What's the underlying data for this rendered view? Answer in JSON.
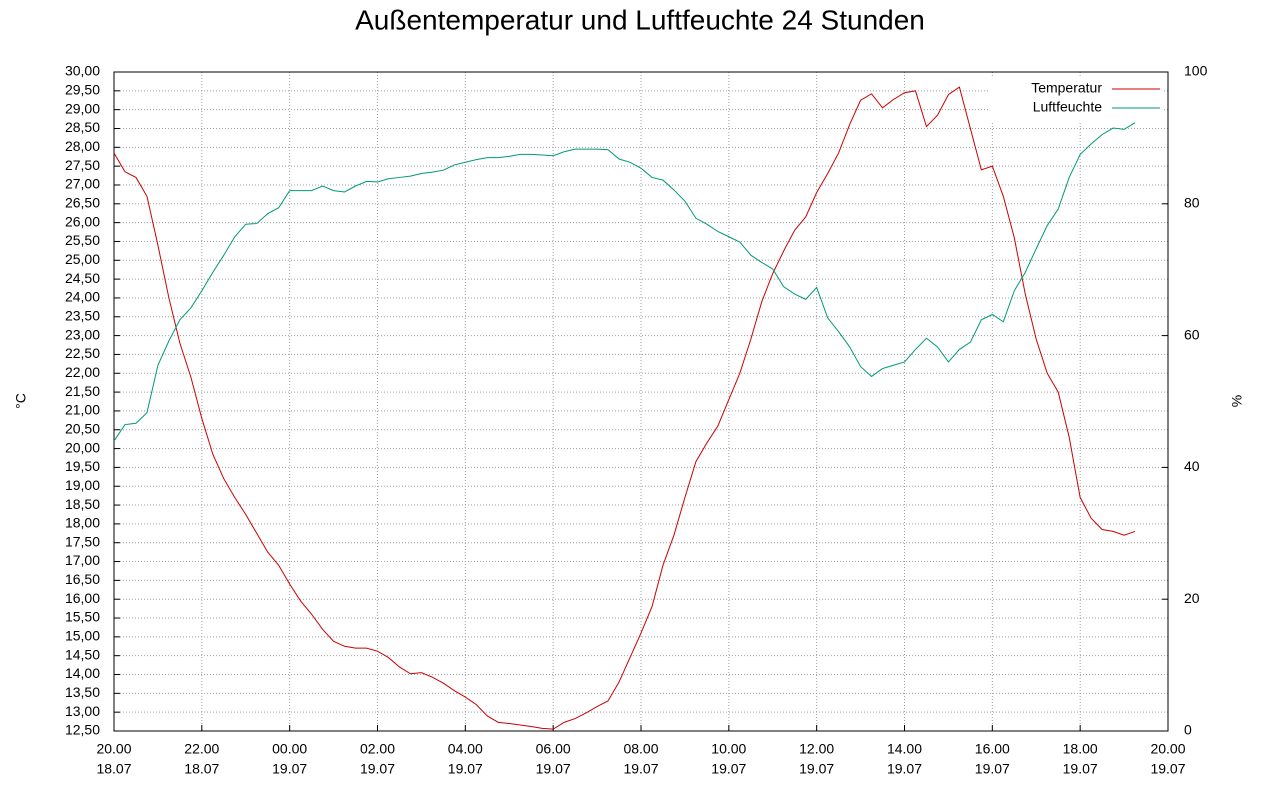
{
  "chart_data": {
    "type": "line",
    "title": "Außentemperatur und Luftfeuchte 24 Stunden",
    "ylabel": "°C",
    "y2label": "%",
    "grid": true,
    "legend": "upper right",
    "xlim": [
      0,
      24
    ],
    "xticks": [
      {
        "value": 0,
        "label": [
          "20.00",
          "18.07"
        ]
      },
      {
        "value": 2,
        "label": [
          "22.00",
          "18.07"
        ]
      },
      {
        "value": 4,
        "label": [
          "00.00",
          "19.07"
        ]
      },
      {
        "value": 6,
        "label": [
          "02.00",
          "19.07"
        ]
      },
      {
        "value": 8,
        "label": [
          "04.00",
          "19.07"
        ]
      },
      {
        "value": 10,
        "label": [
          "06.00",
          "19.07"
        ]
      },
      {
        "value": 12,
        "label": [
          "08.00",
          "19.07"
        ]
      },
      {
        "value": 14,
        "label": [
          "10.00",
          "19.07"
        ]
      },
      {
        "value": 16,
        "label": [
          "12.00",
          "19.07"
        ]
      },
      {
        "value": 18,
        "label": [
          "14.00",
          "19.07"
        ]
      },
      {
        "value": 20,
        "label": [
          "16.00",
          "19.07"
        ]
      },
      {
        "value": 22,
        "label": [
          "18.00",
          "19.07"
        ]
      },
      {
        "value": 24,
        "label": [
          "20.00",
          "19.07"
        ]
      }
    ],
    "ylim": [
      12.5,
      30
    ],
    "yticks": [
      {
        "value": 12.5,
        "label": "12,50"
      },
      {
        "value": 13,
        "label": "13,00"
      },
      {
        "value": 13.5,
        "label": "13,50"
      },
      {
        "value": 14,
        "label": "14,00"
      },
      {
        "value": 14.5,
        "label": "14,50"
      },
      {
        "value": 15,
        "label": "15,00"
      },
      {
        "value": 15.5,
        "label": "15,50"
      },
      {
        "value": 16,
        "label": "16,00"
      },
      {
        "value": 16.5,
        "label": "16,50"
      },
      {
        "value": 17,
        "label": "17,00"
      },
      {
        "value": 17.5,
        "label": "17,50"
      },
      {
        "value": 18,
        "label": "18,00"
      },
      {
        "value": 18.5,
        "label": "18,50"
      },
      {
        "value": 19,
        "label": "19,00"
      },
      {
        "value": 19.5,
        "label": "19,50"
      },
      {
        "value": 20,
        "label": "20,00"
      },
      {
        "value": 20.5,
        "label": "20,50"
      },
      {
        "value": 21,
        "label": "21,00"
      },
      {
        "value": 21.5,
        "label": "21,50"
      },
      {
        "value": 22,
        "label": "22,00"
      },
      {
        "value": 22.5,
        "label": "22,50"
      },
      {
        "value": 23,
        "label": "23,00"
      },
      {
        "value": 23.5,
        "label": "23,50"
      },
      {
        "value": 24,
        "label": "24,00"
      },
      {
        "value": 24.5,
        "label": "24,50"
      },
      {
        "value": 25,
        "label": "25,00"
      },
      {
        "value": 25.5,
        "label": "25,50"
      },
      {
        "value": 26,
        "label": "26,00"
      },
      {
        "value": 26.5,
        "label": "26,50"
      },
      {
        "value": 27,
        "label": "27,00"
      },
      {
        "value": 27.5,
        "label": "27,50"
      },
      {
        "value": 28,
        "label": "28,00"
      },
      {
        "value": 28.5,
        "label": "28,50"
      },
      {
        "value": 29,
        "label": "29,00"
      },
      {
        "value": 29.5,
        "label": "29,50"
      },
      {
        "value": 30,
        "label": "30,00"
      }
    ],
    "y2lim": [
      0,
      100
    ],
    "y2ticks": [
      0,
      20,
      40,
      60,
      80,
      100
    ],
    "x": [
      0,
      0.25,
      0.5,
      0.75,
      1,
      1.25,
      1.5,
      1.75,
      2,
      2.25,
      2.5,
      2.75,
      3,
      3.25,
      3.5,
      3.75,
      4,
      4.25,
      4.5,
      4.75,
      5,
      5.25,
      5.5,
      5.75,
      6,
      6.25,
      6.5,
      6.75,
      7,
      7.25,
      7.5,
      7.75,
      8,
      8.25,
      8.5,
      8.75,
      9,
      9.25,
      9.5,
      9.75,
      10,
      10.25,
      10.5,
      10.75,
      11,
      11.25,
      11.5,
      11.75,
      12,
      12.25,
      12.5,
      12.75,
      13,
      13.25,
      13.5,
      13.75,
      14,
      14.25,
      14.5,
      14.75,
      15,
      15.25,
      15.5,
      15.75,
      16,
      16.25,
      16.5,
      16.75,
      17,
      17.25,
      17.5,
      17.75,
      18,
      18.25,
      18.5,
      18.75,
      19,
      19.25,
      19.5,
      19.75,
      20,
      20.25,
      20.5,
      20.75,
      21,
      21.25,
      21.5,
      21.75,
      22,
      22.25,
      22.5,
      22.75,
      23,
      23.25
    ],
    "series": [
      {
        "name": "Temperatur",
        "color": "#cc0000",
        "values": [
          27.85,
          27.35,
          27.2,
          26.7,
          25.4,
          24.0,
          22.8,
          21.9,
          20.8,
          19.85,
          19.2,
          18.7,
          18.25,
          17.75,
          17.25,
          16.9,
          16.4,
          15.95,
          15.6,
          15.2,
          14.88,
          14.75,
          14.7,
          14.7,
          14.62,
          14.45,
          14.2,
          14.02,
          14.05,
          13.93,
          13.77,
          13.57,
          13.4,
          13.2,
          12.9,
          12.73,
          12.7,
          12.66,
          12.62,
          12.57,
          12.55,
          12.73,
          12.83,
          12.98,
          13.15,
          13.3,
          13.8,
          14.45,
          15.1,
          15.8,
          16.9,
          17.7,
          18.7,
          19.65,
          20.15,
          20.6,
          21.3,
          22.0,
          22.9,
          23.9,
          24.65,
          25.25,
          25.8,
          26.15,
          26.8,
          27.3,
          27.85,
          28.6,
          29.25,
          29.42,
          29.05,
          29.27,
          29.45,
          29.5,
          28.55,
          28.85,
          29.4,
          29.6,
          28.5,
          27.4,
          27.5,
          26.7,
          25.6,
          24.1,
          22.9,
          22.0,
          21.5,
          20.3,
          18.7,
          18.15,
          17.85,
          17.8,
          17.7,
          17.8
        ]
      },
      {
        "name": "Luftfeuchte",
        "color": "#009977",
        "axis": "y2",
        "values": [
          44,
          46.5,
          46.7,
          48.3,
          55.5,
          59.2,
          62.4,
          64.2,
          66.8,
          69.6,
          72.2,
          75,
          76.9,
          77,
          78.5,
          79.4,
          82,
          82,
          82,
          82.7,
          82,
          81.8,
          82.7,
          83.4,
          83.3,
          83.8,
          84,
          84.2,
          84.6,
          84.8,
          85.1,
          85.9,
          86.3,
          86.7,
          87,
          87,
          87.2,
          87.5,
          87.5,
          87.4,
          87.3,
          87.9,
          88.3,
          88.3,
          88.3,
          88.2,
          86.8,
          86.3,
          85.4,
          84,
          83.6,
          82.1,
          80.4,
          77.8,
          76.9,
          75.8,
          75,
          74.2,
          72.2,
          71.1,
          70.1,
          67.4,
          66.3,
          65.5,
          67.3,
          62.7,
          60.6,
          58.3,
          55.3,
          53.8,
          55,
          55.5,
          56,
          57.9,
          59.6,
          58.3,
          56,
          57.9,
          59,
          62.4,
          63.2,
          62.1,
          66.8,
          69.6,
          73.2,
          76.7,
          79.2,
          84,
          87.5,
          89.1,
          90.5,
          91.5,
          91.3,
          92.3
        ]
      }
    ]
  }
}
